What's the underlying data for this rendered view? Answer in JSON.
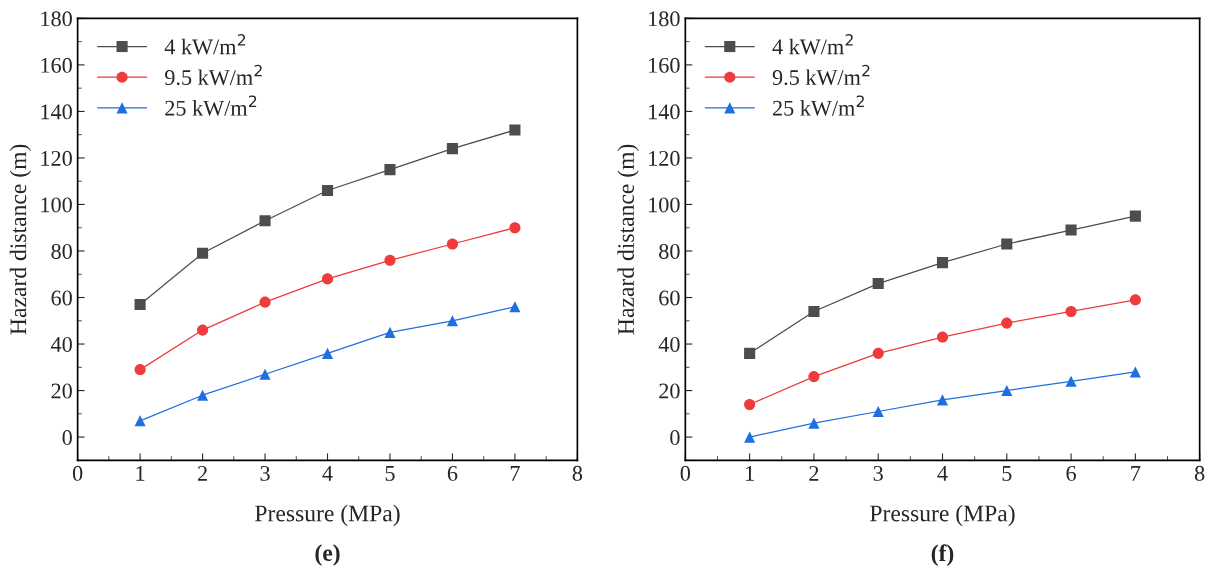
{
  "chart_data": [
    {
      "type": "line",
      "xlabel": "Pressure (MPa)",
      "ylabel": "Hazard distance (m)",
      "annotations": [
        "(e)"
      ],
      "x": [
        1,
        2,
        3,
        4,
        5,
        6,
        7
      ],
      "xlim": [
        0,
        8
      ],
      "xticks": [
        0,
        1,
        2,
        3,
        4,
        5,
        6,
        7,
        8
      ],
      "ylim": [
        -10,
        180
      ],
      "yticks": [
        0,
        20,
        40,
        60,
        80,
        100,
        120,
        140,
        160,
        180
      ],
      "grid": false,
      "legend": "top left",
      "series": [
        {
          "name": "4 kW/m$^{2}$",
          "color": "#4d4d4d",
          "marker": "square",
          "values": [
            57,
            79,
            93,
            106,
            115,
            124,
            132
          ]
        },
        {
          "name": "9.5 kW/m$^{2}$",
          "color": "#ee3b3b",
          "marker": "circle",
          "values": [
            29,
            46,
            58,
            68,
            76,
            83,
            90
          ]
        },
        {
          "name": "25 kW/m$^{2}$",
          "color": "#1f6fe0",
          "marker": "triangle",
          "values": [
            7,
            18,
            27,
            36,
            45,
            50,
            56
          ]
        }
      ]
    },
    {
      "type": "line",
      "xlabel": "Pressure (MPa)",
      "ylabel": "Hazard distance (m)",
      "annotations": [
        "(f)"
      ],
      "x": [
        1,
        2,
        3,
        4,
        5,
        6,
        7
      ],
      "xlim": [
        0,
        8
      ],
      "xticks": [
        0,
        1,
        2,
        3,
        4,
        5,
        6,
        7,
        8
      ],
      "ylim": [
        -10,
        180
      ],
      "yticks": [
        0,
        20,
        40,
        60,
        80,
        100,
        120,
        140,
        160,
        180
      ],
      "grid": false,
      "legend": "top left",
      "series": [
        {
          "name": "4 kW/m$^{2}$",
          "color": "#4d4d4d",
          "marker": "square",
          "values": [
            36,
            54,
            66,
            75,
            83,
            89,
            95
          ]
        },
        {
          "name": "9.5 kW/m$^{2}$",
          "color": "#ee3b3b",
          "marker": "circle",
          "values": [
            14,
            26,
            36,
            43,
            49,
            54,
            59
          ]
        },
        {
          "name": "25 kW/m$^{2}$",
          "color": "#1f6fe0",
          "marker": "triangle",
          "values": [
            0,
            6,
            11,
            16,
            20,
            24,
            28
          ]
        }
      ]
    }
  ]
}
